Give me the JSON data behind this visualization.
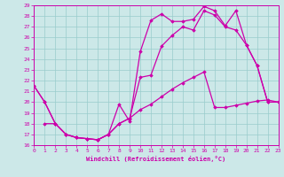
{
  "xlabel": "Windchill (Refroidissement éolien,°C)",
  "bg_color": "#cce8e8",
  "line_color": "#cc00aa",
  "grid_color": "#99cccc",
  "xlim": [
    0,
    23
  ],
  "ylim": [
    16,
    29
  ],
  "xticks": [
    0,
    1,
    2,
    3,
    4,
    5,
    6,
    7,
    8,
    9,
    10,
    11,
    12,
    13,
    14,
    15,
    16,
    17,
    18,
    19,
    20,
    21,
    22,
    23
  ],
  "yticks": [
    16,
    17,
    18,
    19,
    20,
    21,
    22,
    23,
    24,
    25,
    26,
    27,
    28,
    29
  ],
  "line1_x": [
    0,
    1,
    2,
    3,
    4,
    5,
    6,
    7,
    8,
    9,
    10,
    11,
    12,
    13,
    14,
    15,
    16,
    17,
    18,
    19,
    20,
    21,
    22,
    23
  ],
  "line1_y": [
    21.5,
    20.0,
    18.0,
    17.0,
    16.7,
    16.6,
    16.5,
    17.0,
    19.8,
    18.2,
    24.7,
    27.6,
    28.2,
    27.5,
    27.5,
    27.7,
    28.9,
    28.5,
    27.1,
    28.5,
    25.3,
    23.4,
    20.0,
    20.0
  ],
  "line2_x": [
    0,
    1,
    2,
    3,
    4,
    5,
    6,
    7,
    8,
    9,
    10,
    11,
    12,
    13,
    14,
    15,
    16,
    17,
    18,
    19,
    20,
    21,
    22,
    23
  ],
  "line2_y": [
    21.5,
    20.0,
    18.0,
    17.0,
    16.7,
    16.6,
    16.5,
    17.0,
    18.0,
    18.5,
    22.3,
    22.5,
    25.2,
    26.2,
    27.0,
    26.7,
    28.5,
    28.1,
    27.0,
    26.7,
    25.3,
    23.4,
    20.0,
    20.0
  ],
  "line3_x": [
    1,
    2,
    3,
    4,
    5,
    6,
    7,
    8,
    9,
    10,
    11,
    12,
    13,
    14,
    15,
    16,
    17,
    18,
    19,
    20,
    21,
    22,
    23
  ],
  "line3_y": [
    18.0,
    18.0,
    17.0,
    16.7,
    16.6,
    16.5,
    17.0,
    18.0,
    18.5,
    19.3,
    19.8,
    20.5,
    21.2,
    21.8,
    22.3,
    22.8,
    19.5,
    19.5,
    19.7,
    19.9,
    20.1,
    20.2,
    20.0
  ],
  "marker": "D",
  "markersize": 1.8,
  "linewidth": 0.9
}
